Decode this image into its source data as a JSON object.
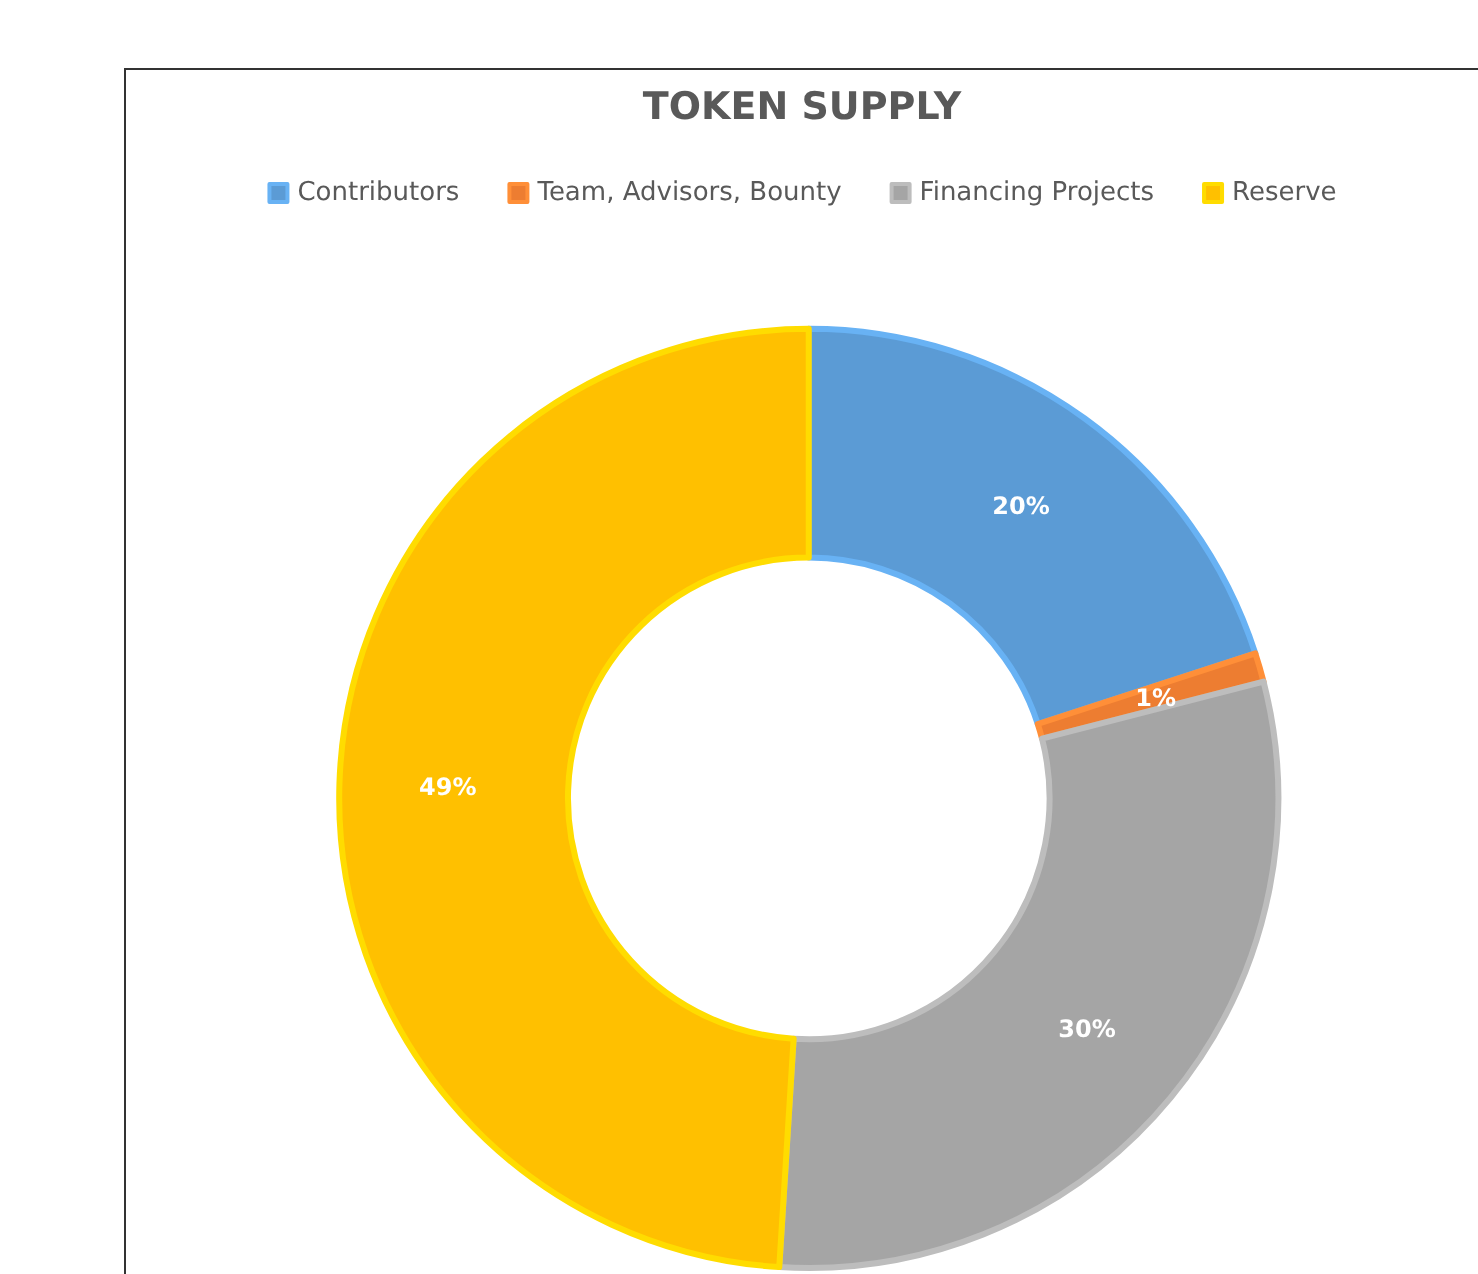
{
  "chart_data": {
    "type": "donut",
    "title": "TOKEN SUPPLY",
    "categories": [
      "Contributors",
      "Team, Advisors, Bounty",
      "Financing Projects",
      "Reserve"
    ],
    "values": [
      20,
      1,
      30,
      49
    ],
    "colors": [
      "#5b9bd5",
      "#ed7d31",
      "#a5a5a5",
      "#ffc000"
    ],
    "value_labels": [
      "20%",
      "1%",
      "30%",
      "49%"
    ],
    "legend": "top"
  }
}
